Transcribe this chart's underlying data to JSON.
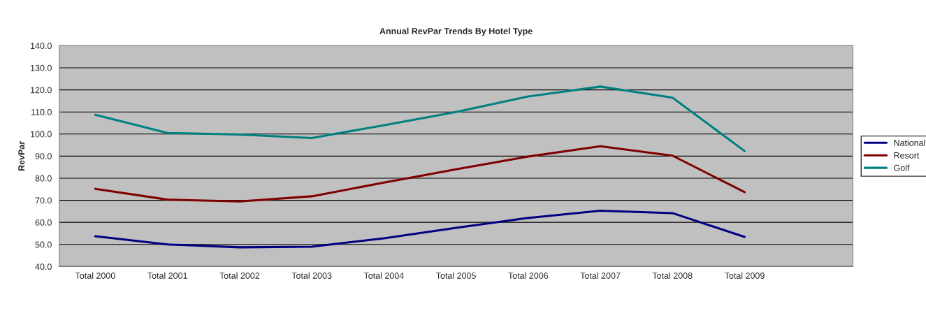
{
  "chart_data": {
    "type": "line",
    "title": "Annual RevPar Trends By Hotel Type",
    "ylabel": "RevPar",
    "categories": [
      "Total 2000",
      "Total 2001",
      "Total 2002",
      "Total 2003",
      "Total 2004",
      "Total 2005",
      "Total 2006",
      "Total 2007",
      "Total 2008",
      "Total 2009",
      null
    ],
    "series": [
      {
        "name": "National",
        "color": "#000080",
        "values": [
          53.7,
          50.0,
          48.7,
          49.0,
          52.8,
          57.5,
          62.0,
          65.3,
          64.2,
          53.4,
          null
        ]
      },
      {
        "name": "Resort",
        "color": "#800000",
        "values": [
          75.2,
          70.3,
          69.5,
          71.8,
          78.0,
          84.0,
          89.8,
          94.5,
          90.2,
          73.7,
          null
        ]
      },
      {
        "name": "Golf",
        "color": "#008080",
        "values": [
          108.7,
          100.5,
          99.8,
          98.2,
          104.0,
          110.0,
          117.0,
          121.5,
          116.5,
          92.3,
          null
        ]
      }
    ],
    "ylim": [
      40,
      140
    ],
    "yticks": [
      {
        "value": 40,
        "label": "40.0"
      },
      {
        "value": 50,
        "label": "50.0"
      },
      {
        "value": 60,
        "label": "60.0"
      },
      {
        "value": 70,
        "label": "70.0"
      },
      {
        "value": 80,
        "label": "80.0"
      },
      {
        "value": 90,
        "label": "90.0"
      },
      {
        "value": 100,
        "label": "100.0"
      },
      {
        "value": 110,
        "label": "110.0"
      },
      {
        "value": 120,
        "label": "120.0"
      },
      {
        "value": 130,
        "label": "130.0"
      },
      {
        "value": 140,
        "label": "140.0"
      }
    ],
    "grid": "y",
    "legend": "right",
    "marker": "none",
    "line_style": "solid"
  }
}
